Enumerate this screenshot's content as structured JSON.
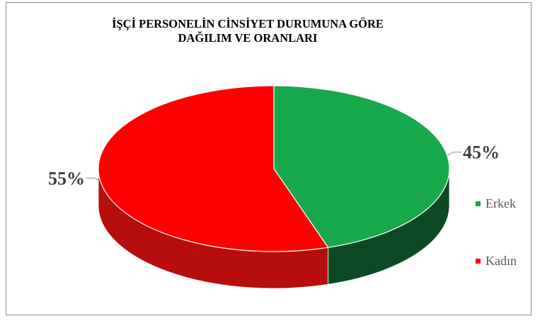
{
  "chart_data": {
    "type": "pie",
    "title_lines": [
      "İŞÇİ PERSONELİN CİNSİYET DURUMUNA GÖRE",
      "DAĞILIM VE ORANLARI"
    ],
    "slices": [
      {
        "label": "Erkek",
        "value": 45,
        "display": "45%",
        "color": "#16a84b",
        "dark": "#0b4a22"
      },
      {
        "label": "Kadın",
        "value": 55,
        "display": "55%",
        "color": "#ff0000",
        "dark": "#b80d0d"
      }
    ],
    "legend_position": "right",
    "three_d": true
  }
}
